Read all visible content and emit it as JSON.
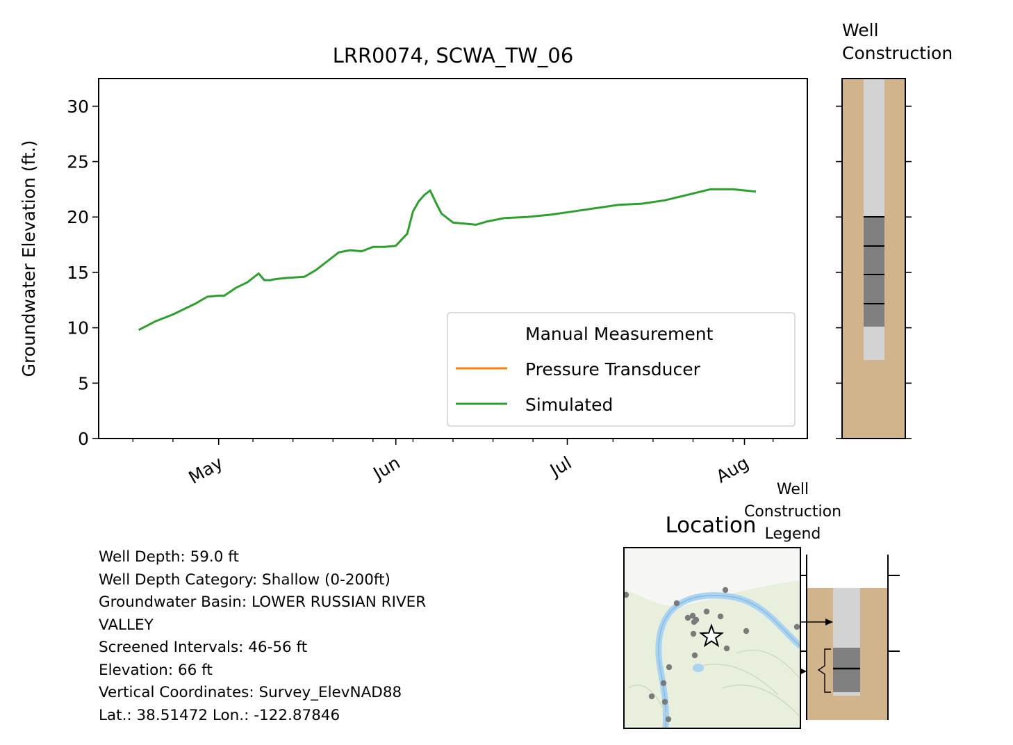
{
  "chart_data": [
    {
      "type": "line",
      "title": "LRR0074, SCWA_TW_06",
      "ylabel": "Groundwater Elevation (ft.)",
      "xlabel": "",
      "ylim": [
        0,
        32.5
      ],
      "xlim": [
        "2023-04-10",
        "2023-08-12"
      ],
      "yticks": [
        0,
        5,
        10,
        15,
        20,
        25,
        30
      ],
      "xticks": [
        {
          "date": "2023-05-01",
          "label": "May"
        },
        {
          "date": "2023-06-01",
          "label": "Jun"
        },
        {
          "date": "2023-07-01",
          "label": "Jul"
        },
        {
          "date": "2023-08-01",
          "label": "Aug"
        }
      ],
      "minor_xtick_dates": [
        "2023-04-16",
        "2023-04-23",
        "2023-05-07",
        "2023-05-14",
        "2023-05-21",
        "2023-05-28",
        "2023-06-04",
        "2023-06-11",
        "2023-06-18",
        "2023-06-25",
        "2023-07-09",
        "2023-07-16",
        "2023-07-23",
        "2023-07-30",
        "2023-08-06"
      ],
      "legend_placement": "lower right",
      "grid": false,
      "series": [
        {
          "name": "Manual Measurement",
          "color": "none",
          "x": [],
          "y": []
        },
        {
          "name": "Pressure Transducer",
          "color": "#ff7f0e",
          "x": [],
          "y": []
        },
        {
          "name": "Simulated",
          "color": "#2ca02c",
          "x": [
            "2023-04-17",
            "2023-04-20",
            "2023-04-23",
            "2023-04-25",
            "2023-04-27",
            "2023-04-29",
            "2023-05-01",
            "2023-05-02",
            "2023-05-04",
            "2023-05-06",
            "2023-05-08",
            "2023-05-09",
            "2023-05-10",
            "2023-05-11",
            "2023-05-13",
            "2023-05-16",
            "2023-05-18",
            "2023-05-20",
            "2023-05-22",
            "2023-05-24",
            "2023-05-26",
            "2023-05-28",
            "2023-05-30",
            "2023-06-01",
            "2023-06-03",
            "2023-06-04",
            "2023-06-05",
            "2023-06-06",
            "2023-06-07",
            "2023-06-08",
            "2023-06-09",
            "2023-06-11",
            "2023-06-13",
            "2023-06-15",
            "2023-06-17",
            "2023-06-20",
            "2023-06-24",
            "2023-06-28",
            "2023-07-02",
            "2023-07-06",
            "2023-07-10",
            "2023-07-14",
            "2023-07-18",
            "2023-07-22",
            "2023-07-26",
            "2023-07-30",
            "2023-08-03"
          ],
          "y": [
            9.8,
            10.6,
            11.2,
            11.7,
            12.2,
            12.8,
            12.9,
            12.9,
            13.6,
            14.1,
            14.9,
            14.3,
            14.3,
            14.4,
            14.5,
            14.6,
            15.2,
            16.0,
            16.8,
            17.0,
            16.9,
            17.3,
            17.3,
            17.4,
            18.5,
            20.5,
            21.4,
            22.0,
            22.4,
            21.3,
            20.3,
            19.5,
            19.4,
            19.3,
            19.6,
            19.9,
            20.0,
            20.2,
            20.5,
            20.8,
            21.1,
            21.2,
            21.5,
            22.0,
            22.5,
            22.5,
            22.3
          ]
        }
      ]
    },
    {
      "type": "other",
      "title": "Well\nConstruction",
      "well_depth_ft": 59.0,
      "screened_intervals_ft": [
        [
          46,
          56
        ]
      ],
      "colors": {
        "ground": "#d2b48c",
        "casing": "#d3d3d3",
        "screen": "#808080"
      }
    },
    {
      "type": "other",
      "title": "Location",
      "marker": "star",
      "colors": {
        "map_land": "#e9efdd",
        "river": "#aad3f2",
        "other_wells": "#7a7a7a"
      }
    },
    {
      "type": "other",
      "title": "Well\nConstruction\nLegend"
    }
  ],
  "info": {
    "lines": [
      "Well Depth: 59.0 ft",
      "Well Depth Category: Shallow (0-200ft)",
      "Groundwater Basin: LOWER RUSSIAN RIVER",
      "VALLEY",
      "Screened Intervals: 46-56 ft",
      "Elevation: 66 ft",
      "Vertical Coordinates: Survey_ElevNAD88",
      "Lat.: 38.51472 Lon.: -122.87846"
    ]
  }
}
